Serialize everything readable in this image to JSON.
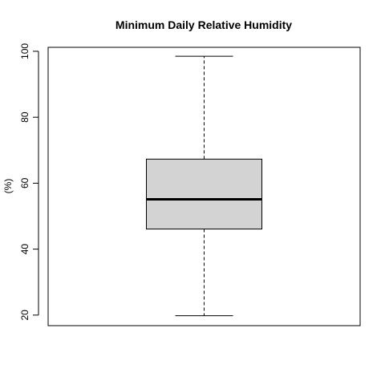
{
  "chart_data": {
    "type": "box",
    "title": "Minimum Daily Relative Humidity",
    "xlabel": "",
    "ylabel": "(%)",
    "ylim": [
      16.8,
      101.2
    ],
    "yticks": [
      20,
      40,
      60,
      80,
      100
    ],
    "grid": false,
    "box": {
      "min": 19.8,
      "q1": 46.1,
      "median": 55.1,
      "q3": 67.3,
      "max": 98.5,
      "fill": "#d3d3d3"
    }
  }
}
